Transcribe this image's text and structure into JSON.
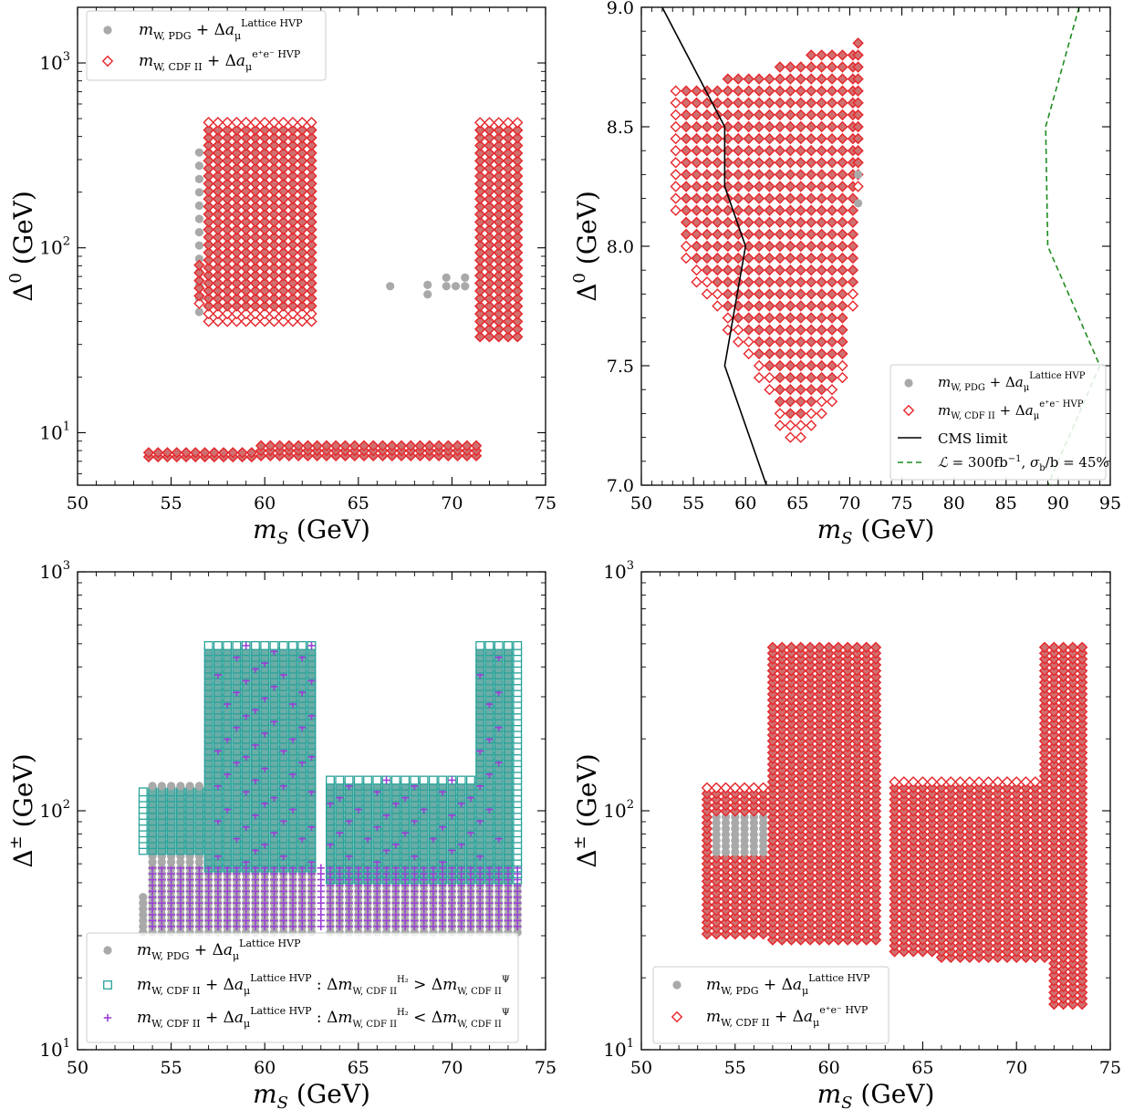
{
  "colors": {
    "pdg_gray": "#a9a9a9",
    "cdf_red": "#e8252a",
    "cdf_fill": "#cf7070",
    "teal": "#2aa39a",
    "teal_fill": "#6bada7",
    "purple": "#9b3fd6",
    "cms_black": "#000000",
    "projection_green": "#1e8c1e"
  },
  "chart_data": [
    {
      "type": "scatter",
      "panel": "top-left",
      "xlabel": "m_S (GeV)",
      "ylabel": "Δ^0 (GeV)",
      "xlim": [
        50,
        75
      ],
      "ylim": [
        5.2,
        2000
      ],
      "yscale": "log",
      "xticks": [
        "50",
        "55",
        "60",
        "65",
        "70",
        "75"
      ],
      "yticks": [
        {
          "value": 10,
          "label": "10^1"
        },
        {
          "value": 100,
          "label": "10^2"
        },
        {
          "value": 1000,
          "label": "10^3"
        }
      ],
      "legend_position": "top-left",
      "series": [
        {
          "name": "m_{W,PDG} + Δa_μ^{Lattice HVP}",
          "marker": "circle",
          "regions": [
            {
              "x": [
                56.3,
                56.3
              ],
              "y": [
                45,
                380
              ]
            },
            {
              "x": [
                57,
                62.8
              ],
              "y": [
                38,
                500
              ]
            },
            {
              "x": [
                66.7,
                66.7
              ],
              "y": [
                62,
                62
              ]
            },
            {
              "x": [
                68.7,
                68.7
              ],
              "y": [
                55,
                63
              ]
            },
            {
              "x": [
                69.7,
                70.7
              ],
              "y": [
                62,
                69
              ]
            },
            {
              "x": [
                71.2,
                73.8
              ],
              "y": [
                33,
                500
              ]
            },
            {
              "x": [
                57,
                71.2
              ],
              "y": [
                7.5,
                8.5
              ]
            }
          ]
        },
        {
          "name": "m_{W,CDF II} + Δa_μ^{e+e− HVP}",
          "marker": "diamond",
          "regions": [
            {
              "x": [
                56.3,
                56.3
              ],
              "y": [
                50,
                85
              ]
            },
            {
              "x": [
                57,
                62.8
              ],
              "y": [
                40,
                480
              ]
            },
            {
              "x": [
                71.2,
                73.8
              ],
              "y": [
                33,
                500
              ]
            },
            {
              "x": [
                53.8,
                71.2
              ],
              "y": [
                7.2,
                8.6
              ]
            }
          ]
        }
      ]
    },
    {
      "type": "scatter",
      "panel": "top-right",
      "xlabel": "m_S (GeV)",
      "ylabel": "Δ^0 (GeV)",
      "xlim": [
        50,
        95
      ],
      "ylim": [
        7.0,
        9.0
      ],
      "yscale": "linear",
      "xticks": [
        "50",
        "55",
        "60",
        "65",
        "70",
        "75",
        "80",
        "85",
        "90",
        "95"
      ],
      "yticks": [
        "7.0",
        "7.5",
        "8.0",
        "8.5",
        "9.0"
      ],
      "legend_position": "bottom-right",
      "series": [
        {
          "name": "m_{W,PDG} + Δa_μ^{Lattice HVP}",
          "marker": "circle",
          "points": [
            [
              70.8,
              8.18
            ],
            [
              70.8,
              8.3
            ]
          ]
        },
        {
          "name": "m_{W,CDF II} + Δa_μ^{e+e− HVP}",
          "marker": "diamond",
          "region_profile": [
            [
              53.3,
              8.13,
              8.65
            ],
            [
              54.3,
              7.92,
              8.65
            ],
            [
              55.3,
              7.82,
              8.65
            ],
            [
              56.3,
              7.77,
              8.65
            ],
            [
              57.3,
              7.72,
              8.65
            ],
            [
              58.3,
              7.62,
              8.7
            ],
            [
              59.3,
              7.57,
              8.7
            ],
            [
              60.3,
              7.52,
              8.7
            ],
            [
              61.3,
              7.42,
              8.7
            ],
            [
              62.3,
              7.37,
              8.7
            ],
            [
              63.3,
              7.25,
              8.75
            ],
            [
              64.3,
              7.2,
              8.75
            ],
            [
              65.3,
              7.2,
              8.75
            ],
            [
              66.3,
              7.25,
              8.8
            ],
            [
              67.3,
              7.3,
              8.8
            ],
            [
              68.3,
              7.35,
              8.8
            ],
            [
              69.3,
              7.45,
              8.8
            ],
            [
              70.3,
              7.72,
              8.8
            ],
            [
              70.8,
              8.22,
              8.85
            ]
          ]
        },
        {
          "name": "CMS limit",
          "type": "line",
          "style": "solid",
          "x": [
            52.0,
            58.0,
            58.0,
            60.0,
            58.0,
            62.0
          ],
          "y": [
            9.0,
            8.5,
            8.25,
            8.0,
            7.5,
            7.0
          ]
        },
        {
          "name": "L = 300fb^-1, σ_b/b = 45%",
          "type": "line",
          "style": "dashed",
          "x": [
            92.0,
            88.8,
            89.0,
            94.0,
            89.0
          ],
          "y": [
            9.0,
            8.5,
            8.0,
            7.5,
            7.0
          ]
        }
      ]
    },
    {
      "type": "scatter",
      "panel": "bottom-left",
      "xlabel": "m_S (GeV)",
      "ylabel": "Δ^± (GeV)",
      "xlim": [
        50,
        75
      ],
      "ylim": [
        10,
        1000
      ],
      "yscale": "log",
      "xticks": [
        "50",
        "55",
        "60",
        "65",
        "70",
        "75"
      ],
      "yticks": [
        {
          "value": 10,
          "label": "10^1"
        },
        {
          "value": 100,
          "label": "10^2"
        },
        {
          "value": 1000,
          "label": "10^3"
        }
      ],
      "legend_position": "bottom-left",
      "series": [
        {
          "name": "m_{W,PDG} + Δa_μ^{Lattice HVP}",
          "marker": "circle"
        },
        {
          "name": "m_{W,CDF II} + Δa_μ^{Lattice HVP} : Δm_{W,CDF II}^{H_2} > Δm_{W,CDF II}^{Ψ}",
          "marker": "square",
          "regions": [
            {
              "x": [
                53.5,
                56.5
              ],
              "y": [
                65,
                125
              ]
            },
            {
              "x": [
                57,
                62.8
              ],
              "y": [
                55,
                500
              ]
            },
            {
              "x": [
                63.2,
                71.0
              ],
              "y": [
                50,
                135
              ]
            },
            {
              "x": [
                71.2,
                73.5
              ],
              "y": [
                50,
                500
              ]
            }
          ]
        },
        {
          "name": "m_{W,CDF II} + Δa_μ^{Lattice HVP} : Δm_{W,CDF II}^{H_2} < Δm_{W,CDF II}^{Ψ}",
          "marker": "plus",
          "regions": [
            {
              "x": [
                54,
                73.5
              ],
              "y": [
                31,
                60
              ]
            }
          ]
        }
      ]
    },
    {
      "type": "scatter",
      "panel": "bottom-right",
      "xlabel": "m_S (GeV)",
      "ylabel": "Δ^± (GeV)",
      "xlim": [
        50,
        75
      ],
      "ylim": [
        10,
        1000
      ],
      "yscale": "log",
      "xticks": [
        "50",
        "55",
        "60",
        "65",
        "70",
        "75"
      ],
      "yticks": [
        {
          "value": 10,
          "label": "10^1"
        },
        {
          "value": 100,
          "label": "10^2"
        },
        {
          "value": 1000,
          "label": "10^3"
        }
      ],
      "legend_position": "bottom-left",
      "series": [
        {
          "name": "m_{W,PDG} + Δa_μ^{Lattice HVP}",
          "marker": "circle"
        },
        {
          "name": "m_{W,CDF II} + Δa_μ^{e+e− HVP}",
          "marker": "diamond",
          "regions": [
            {
              "x": [
                53.5,
                56.5
              ],
              "y": [
                31,
                120
              ]
            },
            {
              "x": [
                57,
                62.8
              ],
              "y": [
                28,
                500
              ]
            },
            {
              "x": [
                63.2,
                71.0
              ],
              "y": [
                24,
                125
              ]
            },
            {
              "x": [
                71.2,
                73.5
              ],
              "y": [
                15,
                500
              ]
            }
          ]
        }
      ]
    }
  ]
}
